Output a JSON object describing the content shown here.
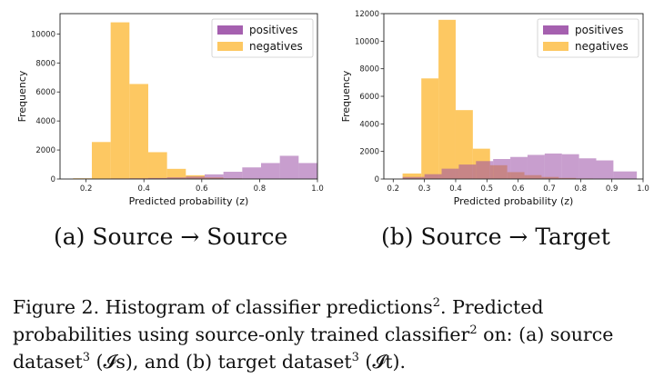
{
  "chart_data": [
    {
      "type": "bar",
      "panel": "a",
      "xlabel": "Predicted probability (z)",
      "ylabel": "Frequency",
      "xlim": [
        0.11,
        1.0
      ],
      "ylim": [
        0,
        11400
      ],
      "xticks": [
        "0.2",
        "0.4",
        "0.6",
        "0.8",
        "1.0"
      ],
      "yticks": [
        "0",
        "2000",
        "4000",
        "6000",
        "8000",
        "10000"
      ],
      "legend": {
        "placement": "top-right",
        "entries": [
          "positives",
          "negatives"
        ]
      },
      "series": [
        {
          "name": "positives",
          "color": "#9b4fa6",
          "bins": [
            [
              0.155,
              0.22,
              20
            ],
            [
              0.22,
              0.285,
              30
            ],
            [
              0.285,
              0.35,
              40
            ],
            [
              0.35,
              0.415,
              50
            ],
            [
              0.415,
              0.48,
              70
            ],
            [
              0.48,
              0.545,
              110
            ],
            [
              0.545,
              0.61,
              170
            ],
            [
              0.61,
              0.675,
              320
            ],
            [
              0.675,
              0.74,
              500
            ],
            [
              0.74,
              0.805,
              800
            ],
            [
              0.805,
              0.87,
              1100
            ],
            [
              0.87,
              0.935,
              1600
            ],
            [
              0.935,
              1.0,
              1100
            ]
          ]
        },
        {
          "name": "negatives",
          "color": "#fdc55a",
          "bins": [
            [
              0.155,
              0.22,
              50
            ],
            [
              0.22,
              0.285,
              2550
            ],
            [
              0.285,
              0.35,
              10800
            ],
            [
              0.35,
              0.415,
              6550
            ],
            [
              0.415,
              0.48,
              1850
            ],
            [
              0.48,
              0.545,
              700
            ],
            [
              0.545,
              0.61,
              260
            ],
            [
              0.61,
              0.675,
              110
            ],
            [
              0.675,
              0.74,
              40
            ],
            [
              0.74,
              0.805,
              20
            ],
            [
              0.805,
              0.87,
              10
            ],
            [
              0.87,
              0.935,
              5
            ],
            [
              0.935,
              1.0,
              2
            ]
          ]
        }
      ]
    },
    {
      "type": "bar",
      "panel": "b",
      "xlabel": "Predicted probability (z)",
      "ylabel": "Frequency",
      "xlim": [
        0.17,
        1.0
      ],
      "ylim": [
        0,
        12000
      ],
      "xticks": [
        "0.2",
        "0.3",
        "0.4",
        "0.5",
        "0.6",
        "0.7",
        "0.8",
        "0.9",
        "1.0"
      ],
      "yticks": [
        "0",
        "2000",
        "4000",
        "6000",
        "8000",
        "10000",
        "12000"
      ],
      "legend": {
        "placement": "top-right",
        "entries": [
          "positives",
          "negatives"
        ]
      },
      "series": [
        {
          "name": "positives",
          "color": "#9b4fa6",
          "bins": [
            [
              0.23,
              0.3,
              150
            ],
            [
              0.3,
              0.355,
              350
            ],
            [
              0.355,
              0.41,
              750
            ],
            [
              0.41,
              0.465,
              1050
            ],
            [
              0.465,
              0.52,
              1300
            ],
            [
              0.52,
              0.575,
              1450
            ],
            [
              0.575,
              0.63,
              1600
            ],
            [
              0.63,
              0.685,
              1750
            ],
            [
              0.685,
              0.74,
              1850
            ],
            [
              0.74,
              0.795,
              1800
            ],
            [
              0.795,
              0.85,
              1500
            ],
            [
              0.85,
              0.905,
              1350
            ],
            [
              0.905,
              0.98,
              550
            ]
          ]
        },
        {
          "name": "negatives",
          "color": "#fdc55a",
          "bins": [
            [
              0.23,
              0.29,
              400
            ],
            [
              0.29,
              0.345,
              7300
            ],
            [
              0.345,
              0.4,
              11550
            ],
            [
              0.4,
              0.455,
              5000
            ],
            [
              0.455,
              0.51,
              2200
            ],
            [
              0.51,
              0.565,
              1000
            ],
            [
              0.565,
              0.62,
              500
            ],
            [
              0.62,
              0.675,
              280
            ],
            [
              0.675,
              0.73,
              150
            ],
            [
              0.73,
              0.785,
              80
            ],
            [
              0.785,
              0.84,
              40
            ],
            [
              0.84,
              0.895,
              20
            ],
            [
              0.895,
              0.95,
              10
            ]
          ]
        }
      ]
    }
  ],
  "subcaptions": {
    "a": "(a) Source → Source",
    "b": "(b) Source → Target"
  },
  "caption": {
    "part1": "Figure 2. Histogram of classifier predictions",
    "sup1": "2",
    "part2": ". Predicted probabilities using source-only trained classifier",
    "sup2": "2",
    "part3": " on: (a) source dataset",
    "sup3": "3",
    "part4": " (𝓘s), and (b) target dataset",
    "sup4": "3",
    "part5": " (𝓘t)."
  }
}
